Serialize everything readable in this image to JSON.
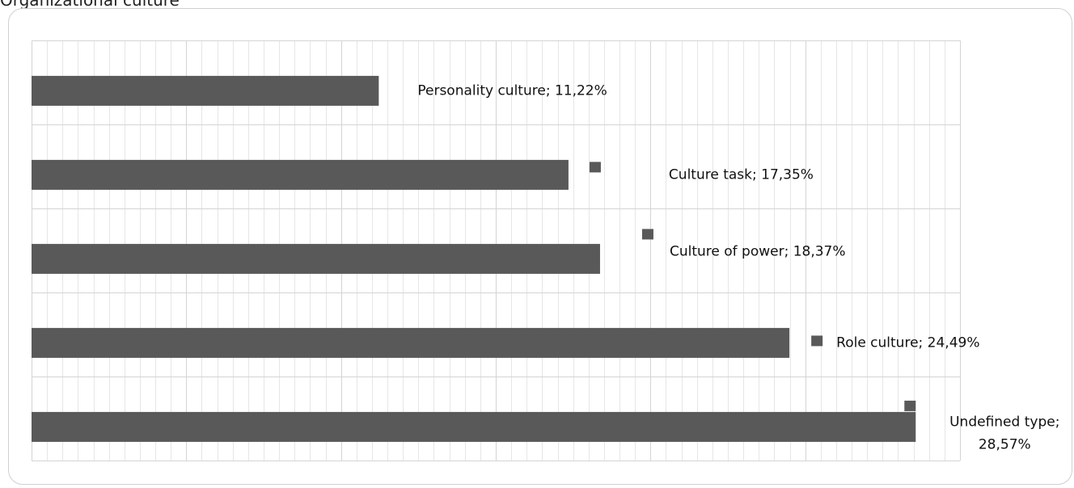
{
  "chart_data": {
    "type": "bar",
    "orientation": "horizontal",
    "title": "Organizational culture",
    "categories": [
      "Personality culture",
      "Culture task",
      "Culture of power",
      "Role culture",
      "Undefined type"
    ],
    "values": [
      11.22,
      17.35,
      18.37,
      24.49,
      28.57
    ],
    "data_labels": [
      [
        "Personality culture; 11,22%"
      ],
      [
        "Culture task; 17,35%"
      ],
      [
        "Culture of power; 18,37%"
      ],
      [
        "Role culture; 24,49%"
      ],
      [
        "Undefined type;",
        "28,57%"
      ]
    ],
    "xlim": [
      0,
      30
    ],
    "grid": true,
    "legend": "none",
    "bar_color": "#595959"
  }
}
